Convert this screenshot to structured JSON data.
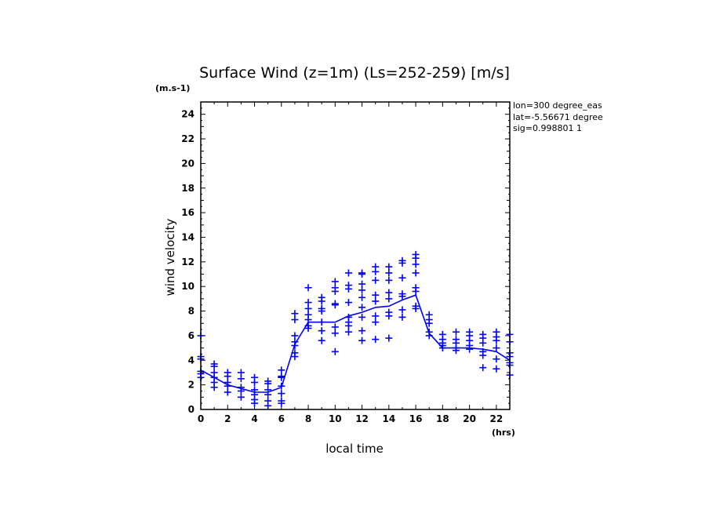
{
  "chart_data": {
    "type": "line",
    "title": "Surface Wind (z=1m) (Ls=252-259) [m/s]",
    "ylabel": "wind velocity",
    "xlabel": "local time",
    "y_unit": "(m.s-1)",
    "x_unit": "(hrs)",
    "xlim": [
      0,
      23
    ],
    "ylim": [
      0,
      25
    ],
    "x_ticks": [
      "0",
      "2",
      "4",
      "6",
      "8",
      "10",
      "12",
      "14",
      "16",
      "18",
      "20",
      "22"
    ],
    "y_ticks": [
      "0",
      "2",
      "4",
      "6",
      "8",
      "10",
      "12",
      "14",
      "16",
      "18",
      "20",
      "22",
      "24"
    ],
    "info_lines": [
      "lon=300 degree_eas",
      "lat=-5.56671 degree",
      "sig=0.998801 1"
    ],
    "colors": {
      "series": "#0000ff",
      "axes": "#000000"
    },
    "grid": false,
    "series": [
      {
        "type": "line",
        "x": [
          0,
          1,
          2,
          3,
          4,
          5,
          6,
          7,
          8,
          9,
          10,
          11,
          12,
          13,
          14,
          15,
          16,
          17,
          18,
          19,
          20,
          21,
          22,
          23
        ],
        "values": [
          3.2,
          2.6,
          2.0,
          1.7,
          1.4,
          1.4,
          1.8,
          5.3,
          7.1,
          7.1,
          7.1,
          7.6,
          7.9,
          8.3,
          8.4,
          8.9,
          9.3,
          6.2,
          5.0,
          5.0,
          5.0,
          4.9,
          4.7,
          4.0
        ]
      },
      {
        "type": "scatter",
        "marker": "+",
        "points": [
          [
            0,
            6.0
          ],
          [
            0,
            4.3
          ],
          [
            0,
            4.1
          ],
          [
            0,
            3.1
          ],
          [
            0,
            2.9
          ],
          [
            0,
            2.6
          ],
          [
            1,
            3.7
          ],
          [
            1,
            3.5
          ],
          [
            1,
            3.0
          ],
          [
            1,
            2.6
          ],
          [
            1,
            2.2
          ],
          [
            1,
            1.8
          ],
          [
            2,
            3.0
          ],
          [
            2,
            2.7
          ],
          [
            2,
            2.2
          ],
          [
            2,
            1.9
          ],
          [
            2,
            1.4
          ],
          [
            3,
            3.0
          ],
          [
            3,
            2.5
          ],
          [
            3,
            1.8
          ],
          [
            3,
            1.5
          ],
          [
            3,
            1.0
          ],
          [
            4,
            2.6
          ],
          [
            4,
            2.2
          ],
          [
            4,
            1.6
          ],
          [
            4,
            1.2
          ],
          [
            4,
            0.8
          ],
          [
            4,
            0.5
          ],
          [
            5,
            2.3
          ],
          [
            5,
            2.1
          ],
          [
            5,
            1.6
          ],
          [
            5,
            1.2
          ],
          [
            5,
            0.7
          ],
          [
            5,
            0.3
          ],
          [
            6,
            3.2
          ],
          [
            6,
            2.7
          ],
          [
            6,
            2.6
          ],
          [
            6,
            1.9
          ],
          [
            6,
            1.3
          ],
          [
            6,
            0.7
          ],
          [
            6,
            0.5
          ],
          [
            7,
            7.8
          ],
          [
            7,
            7.3
          ],
          [
            7,
            6.0
          ],
          [
            7,
            5.5
          ],
          [
            7,
            5.2
          ],
          [
            7,
            4.6
          ],
          [
            7,
            4.3
          ],
          [
            8,
            9.9
          ],
          [
            8,
            8.7
          ],
          [
            8,
            8.2
          ],
          [
            8,
            7.7
          ],
          [
            8,
            7.3
          ],
          [
            8,
            6.8
          ],
          [
            8,
            6.6
          ],
          [
            9,
            9.1
          ],
          [
            9,
            8.8
          ],
          [
            9,
            8.2
          ],
          [
            9,
            8.0
          ],
          [
            9,
            7.1
          ],
          [
            9,
            6.4
          ],
          [
            9,
            5.6
          ],
          [
            10,
            10.4
          ],
          [
            10,
            9.9
          ],
          [
            10,
            9.6
          ],
          [
            10,
            8.6
          ],
          [
            10,
            8.5
          ],
          [
            10,
            6.7
          ],
          [
            10,
            6.2
          ],
          [
            10,
            4.7
          ],
          [
            11,
            11.1
          ],
          [
            11,
            10.1
          ],
          [
            11,
            9.8
          ],
          [
            11,
            8.7
          ],
          [
            11,
            7.5
          ],
          [
            11,
            7.1
          ],
          [
            11,
            6.8
          ],
          [
            11,
            6.3
          ],
          [
            12,
            11.1
          ],
          [
            12,
            11.0
          ],
          [
            12,
            10.2
          ],
          [
            12,
            9.7
          ],
          [
            12,
            9.1
          ],
          [
            12,
            8.3
          ],
          [
            12,
            7.5
          ],
          [
            12,
            6.4
          ],
          [
            12,
            5.6
          ],
          [
            13,
            11.6
          ],
          [
            13,
            11.2
          ],
          [
            13,
            10.5
          ],
          [
            13,
            9.3
          ],
          [
            13,
            8.8
          ],
          [
            13,
            7.6
          ],
          [
            13,
            7.1
          ],
          [
            13,
            5.7
          ],
          [
            14,
            11.6
          ],
          [
            14,
            11.1
          ],
          [
            14,
            10.5
          ],
          [
            14,
            9.5
          ],
          [
            14,
            9.0
          ],
          [
            14,
            7.9
          ],
          [
            14,
            7.6
          ],
          [
            14,
            5.8
          ],
          [
            15,
            12.1
          ],
          [
            15,
            11.9
          ],
          [
            15,
            10.7
          ],
          [
            15,
            9.4
          ],
          [
            15,
            9.2
          ],
          [
            15,
            8.1
          ],
          [
            15,
            7.5
          ],
          [
            16,
            12.6
          ],
          [
            16,
            12.3
          ],
          [
            16,
            11.8
          ],
          [
            16,
            11.1
          ],
          [
            16,
            9.9
          ],
          [
            16,
            9.6
          ],
          [
            16,
            8.4
          ],
          [
            16,
            8.2
          ],
          [
            17,
            7.7
          ],
          [
            17,
            7.3
          ],
          [
            17,
            7.0
          ],
          [
            17,
            6.3
          ],
          [
            17,
            6.0
          ],
          [
            18,
            6.1
          ],
          [
            18,
            5.7
          ],
          [
            18,
            5.4
          ],
          [
            18,
            5.2
          ],
          [
            18,
            5.0
          ],
          [
            19,
            6.3
          ],
          [
            19,
            5.7
          ],
          [
            19,
            5.4
          ],
          [
            19,
            5.0
          ],
          [
            19,
            4.8
          ],
          [
            20,
            6.3
          ],
          [
            20,
            6.0
          ],
          [
            20,
            5.6
          ],
          [
            20,
            5.2
          ],
          [
            20,
            4.9
          ],
          [
            21,
            6.1
          ],
          [
            21,
            5.8
          ],
          [
            21,
            5.4
          ],
          [
            21,
            4.7
          ],
          [
            21,
            4.4
          ],
          [
            21,
            3.4
          ],
          [
            22,
            6.3
          ],
          [
            22,
            5.9
          ],
          [
            22,
            5.6
          ],
          [
            22,
            5.0
          ],
          [
            22,
            4.1
          ],
          [
            22,
            3.3
          ],
          [
            23,
            6.1
          ],
          [
            23,
            5.5
          ],
          [
            23,
            4.6
          ],
          [
            23,
            4.3
          ],
          [
            23,
            3.8
          ],
          [
            23,
            3.6
          ],
          [
            23,
            2.8
          ]
        ]
      }
    ]
  }
}
